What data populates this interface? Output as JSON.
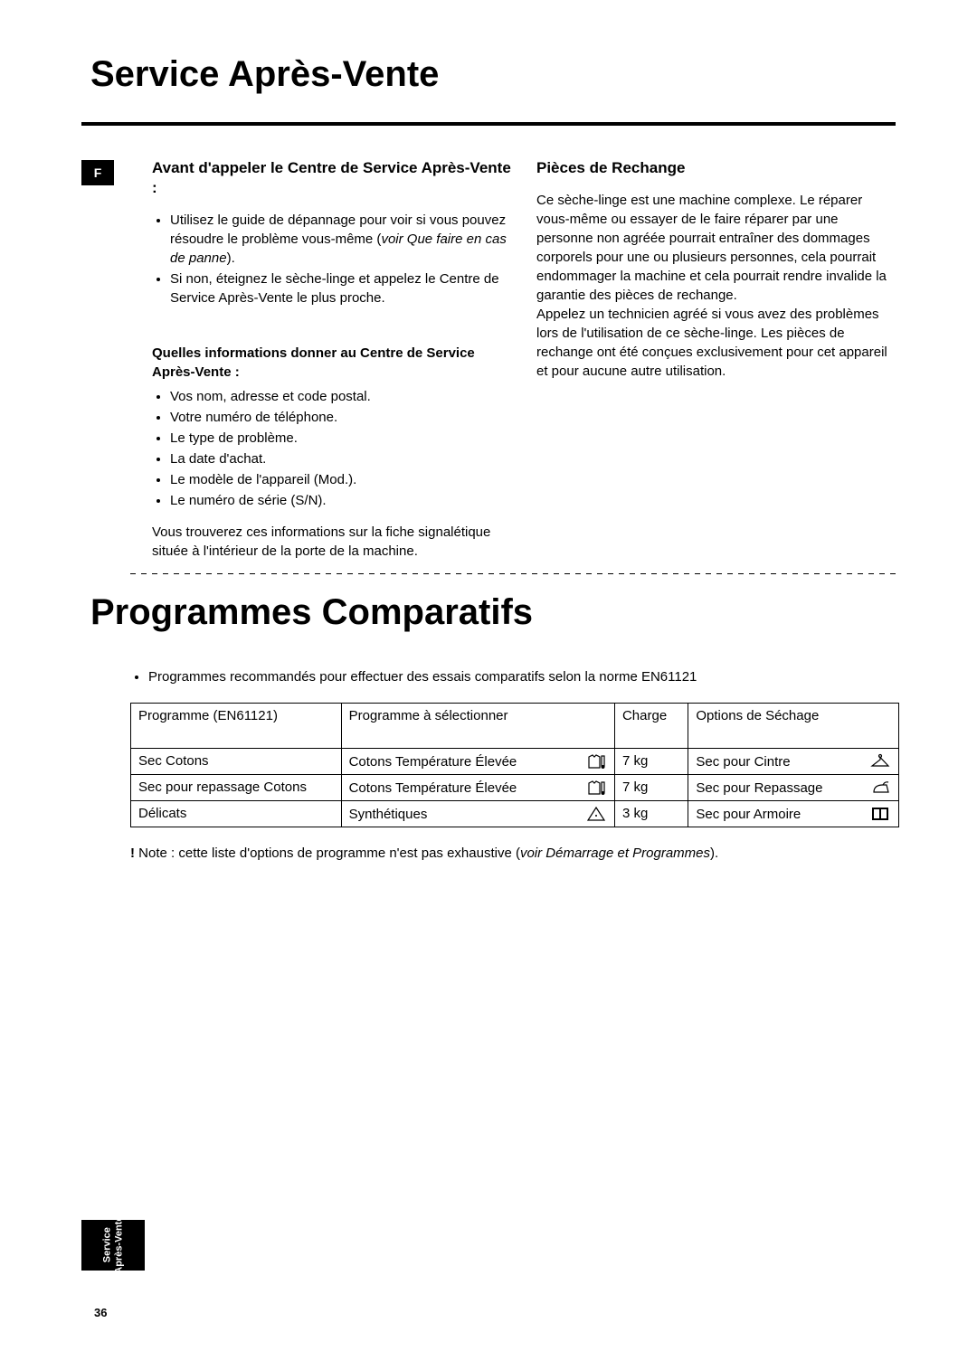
{
  "lang_code": "F",
  "page_title_1": "Service Après-Vente",
  "left": {
    "heading": "Avant d'appeler le Centre de Service Après-Vente :",
    "bullets_1_a_pre": "Utilisez le guide de dépannage pour voir si vous pouvez résoudre le problème vous-même (",
    "bullets_1_a_ital": "voir Que faire en cas de panne",
    "bullets_1_a_post": ").",
    "bullets_1_b": "Si non, éteignez le sèche-linge et appelez le Centre de Service Après-Vente le plus proche.",
    "subhead": "Quelles informations donner au Centre de Service Après-Vente :",
    "bullets_2": [
      "Vos nom, adresse et code postal.",
      "Votre numéro de téléphone.",
      "Le type de problème.",
      "La date d'achat.",
      "Le modèle de l'appareil (Mod.).",
      "Le numéro de série (S/N)."
    ],
    "after_bullets": "Vous trouverez ces informations sur la fiche signalétique située à l'intérieur de la porte de la machine."
  },
  "right": {
    "heading": "Pièces de Rechange",
    "para1": "Ce sèche-linge est une machine complexe. Le réparer vous-même ou essayer de le faire réparer par une personne non agréée pourrait entraîner des dommages corporels pour une ou plusieurs personnes, cela pourrait endommager la machine et cela pourrait rendre invalide la garantie des pièces de rechange.",
    "para2": "Appelez un technicien agréé si vous avez des problèmes lors de l'utilisation de ce sèche-linge. Les pièces de rechange ont été conçues exclusivement pour cet appareil et pour aucune autre utilisation."
  },
  "page_title_2": "Programmes Comparatifs",
  "pre_table_bullet": "Programmes recommandés pour effectuer des essais comparatifs selon la norme EN61121",
  "table": {
    "headers": [
      "Programme (EN61121)",
      "Programme à sélectionner",
      "Charge",
      "Options de Séchage"
    ],
    "col_widths": [
      "200px",
      "260px",
      "70px",
      "200px"
    ],
    "rows": [
      {
        "c0": "Sec Cotons",
        "c1": "Cotons Température Élevée",
        "c1_icon": "shirt-thermo",
        "c2": "7 kg",
        "c3": "Sec pour Cintre",
        "c3_icon": "hanger"
      },
      {
        "c0": "Sec pour repassage Cotons",
        "c1": "Cotons Température Élevée",
        "c1_icon": "shirt-thermo",
        "c2": "7 kg",
        "c3": "Sec pour Repassage",
        "c3_icon": "iron"
      },
      {
        "c0": "Délicats",
        "c1": "Synthétiques",
        "c1_icon": "triangle",
        "c2": "3 kg",
        "c3": "Sec pour Armoire",
        "c3_icon": "cupboard"
      }
    ]
  },
  "note_bang": "!",
  "note_pre": " Note : cette liste d'options de programme n'est pas exhaustive (",
  "note_ital": "voir Démarrage et  Programmes",
  "note_post": ").",
  "side_tab_line1": "Service",
  "side_tab_line2": "Après-Vente",
  "page_number": "36"
}
